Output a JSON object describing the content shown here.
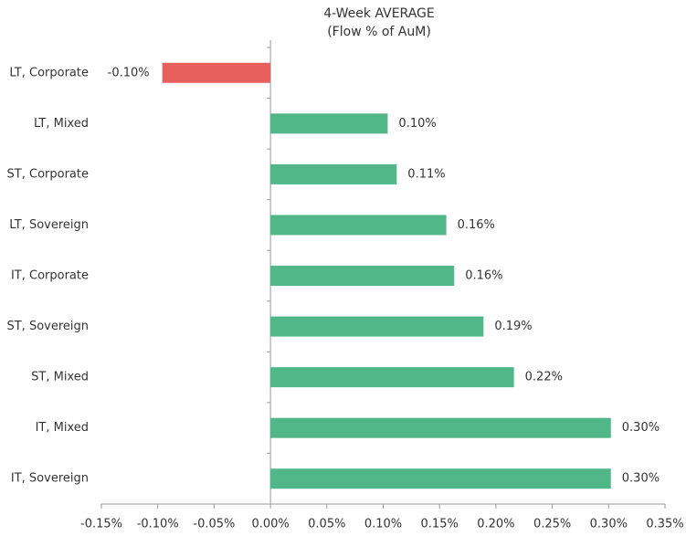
{
  "chart_data": {
    "type": "hbar",
    "title": "4-Week AVERAGE",
    "subtitle": "(Flow % of AuM)",
    "categories": [
      "LT, Corporate",
      "LT, Mixed",
      "ST, Corporate",
      "LT, Sovereign",
      "IT, Corporate",
      "ST, Sovereign",
      "ST, Mixed",
      "IT, Mixed",
      "IT, Sovereign"
    ],
    "values": [
      -0.096,
      0.104,
      0.112,
      0.156,
      0.163,
      0.189,
      0.216,
      0.302,
      0.302
    ],
    "value_labels": [
      "-0.10%",
      "0.10%",
      "0.11%",
      "0.16%",
      "0.16%",
      "0.19%",
      "0.22%",
      "0.30%",
      "0.30%"
    ],
    "positive_color": "#52b788",
    "negative_color": "#e8605e",
    "xlim": [
      -0.15,
      0.35
    ],
    "xticks": [
      {
        "value": -0.15,
        "label": "-0.15%"
      },
      {
        "value": -0.1,
        "label": "-0.10%"
      },
      {
        "value": -0.05,
        "label": "-0.05%"
      },
      {
        "value": 0,
        "label": "0.00%"
      },
      {
        "value": 0.05,
        "label": "0.05%"
      },
      {
        "value": 0.1,
        "label": "0.10%"
      },
      {
        "value": 0.15,
        "label": "0.15%"
      },
      {
        "value": 0.2,
        "label": "0.20%"
      },
      {
        "value": 0.25,
        "label": "0.25%"
      },
      {
        "value": 0.3,
        "label": "0.30%"
      },
      {
        "value": 0.35,
        "label": "0.35%"
      }
    ]
  }
}
